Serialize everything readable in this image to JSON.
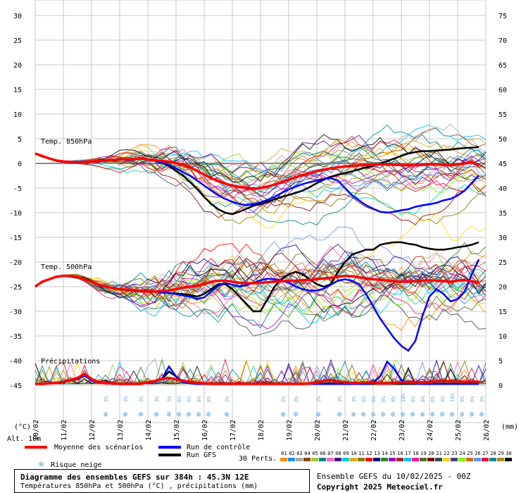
{
  "chart_data": {
    "type": "line",
    "title": "Diagramme des ensembles GEFS sur 384h : 45.3N 12E",
    "subtitle": "Températures 850hPa et 500hPa (°C) , précipitations (mm)",
    "left_axis": {
      "label": "(°C)",
      "ticks": [
        30,
        25,
        20,
        15,
        10,
        5,
        0,
        -5,
        -10,
        -15,
        -20,
        -25,
        -30,
        -35,
        -40,
        -45
      ]
    },
    "right_axis": {
      "label": "(mm)",
      "ticks": [
        75,
        70,
        65,
        60,
        55,
        50,
        45,
        40,
        35,
        30,
        25,
        20,
        15,
        10,
        5,
        0
      ]
    },
    "x_labels": [
      "10/02",
      "11/02",
      "12/02",
      "13/02",
      "14/02",
      "15/02",
      "16/02",
      "17/02",
      "18/02",
      "19/02",
      "20/02",
      "21/02",
      "22/02",
      "23/02",
      "24/02",
      "25/02",
      "26/02"
    ],
    "panel_labels": {
      "t850": "Temp. 850hPa",
      "t500": "Temp. 500hPa",
      "precip": "Précipitations"
    },
    "x_steps": 64,
    "series": [
      {
        "name": "Moyenne des scénarios",
        "color": "#ff0000",
        "t850": [
          2,
          1.5,
          1,
          0.6,
          0.4,
          0.3,
          0.3,
          0.3,
          0.4,
          0.5,
          0.6,
          0.7,
          0.8,
          0.8,
          0.9,
          1,
          0.8,
          0.6,
          0.5,
          0.3,
          0.1,
          -0.3,
          -0.8,
          -1.5,
          -2.3,
          -3,
          -3.6,
          -4.1,
          -4.5,
          -4.8,
          -5,
          -5.1,
          -5,
          -4.7,
          -4.3,
          -3.8,
          -3.3,
          -2.8,
          -2.4,
          -2,
          -1.6,
          -1.3,
          -1,
          -0.8,
          -0.6,
          -0.5,
          -0.4,
          -0.3,
          -0.3,
          -0.2,
          -0.2,
          -0.3,
          -0.3,
          -0.4,
          -0.4,
          -0.3,
          -0.2,
          -0.2,
          -0.3,
          -0.4,
          -0.2,
          0,
          0.3,
          -0.5
        ],
        "t500": [
          -25,
          -24,
          -23.5,
          -23,
          -22.8,
          -22.8,
          -23,
          -23.5,
          -24,
          -24.6,
          -25,
          -25.3,
          -25.5,
          -25.6,
          -25.7,
          -25.9,
          -26,
          -26,
          -25.9,
          -25.8,
          -25.5,
          -25.2,
          -25,
          -24.8,
          -24.5,
          -24,
          -23.8,
          -23.8,
          -24,
          -24.2,
          -24.3,
          -24.3,
          -24.2,
          -24.1,
          -24,
          -23.9,
          -23.8,
          -23.8,
          -23.7,
          -23.6,
          -23.5,
          -23.3,
          -23.2,
          -23,
          -22.8,
          -22.9,
          -23.1,
          -23.3,
          -23.5,
          -23.6,
          -23.8,
          -23.9,
          -24,
          -24,
          -23.9,
          -23.8,
          -23.7,
          -23.8,
          -23.9,
          -24,
          -23.8,
          -23.7,
          -23.9,
          -24.2
        ],
        "precip": [
          0,
          0,
          0.1,
          0.2,
          0.4,
          0.8,
          1.2,
          2,
          1,
          0.3,
          0.1,
          0.1,
          0,
          0,
          0,
          0,
          0.3,
          0.6,
          1,
          1.2,
          0.9,
          0.6,
          0.4,
          0.2,
          0.1,
          0,
          0,
          0,
          0,
          0,
          0,
          0,
          0,
          0,
          0,
          0,
          0,
          0,
          0,
          0.1,
          0.3,
          0.6,
          0.8,
          0.5,
          0.3,
          0.2,
          0.2,
          0.3,
          0.2,
          0.1,
          0.1,
          0.2,
          0.3,
          0.4,
          0.3,
          0.3,
          0.4,
          0.5,
          0.6,
          0.5,
          0.5,
          0.4,
          0.5,
          0.4
        ]
      },
      {
        "name": "Run de contrôle",
        "color": "#0000ff",
        "t850": [
          2,
          1.4,
          1,
          0.5,
          0.3,
          0.2,
          0.2,
          0.3,
          0.4,
          0.5,
          0.6,
          0.7,
          0.8,
          0.9,
          0.9,
          1,
          0.8,
          0.5,
          0.2,
          -0.3,
          -1,
          -1.8,
          -2.5,
          -3.5,
          -4.5,
          -5.5,
          -6.5,
          -7.2,
          -7.8,
          -8.2,
          -8.5,
          -8.3,
          -7.9,
          -7.4,
          -6.8,
          -6,
          -5.3,
          -4.7,
          -4.2,
          -3.8,
          -3.5,
          -3.2,
          -3,
          -3.5,
          -5,
          -6.5,
          -7.5,
          -8.5,
          -9.2,
          -9.8,
          -10,
          -9.8,
          -9.5,
          -9.3,
          -8.8,
          -8.5,
          -8.3,
          -8,
          -7.5,
          -7.2,
          -6.5,
          -5.5,
          -4,
          -2.5
        ],
        "t500": [
          -25,
          -24,
          -23.5,
          -23,
          -22.8,
          -22.8,
          -23,
          -23.5,
          -24,
          -24.6,
          -25,
          -25.3,
          -25.5,
          -25.6,
          -25.7,
          -25.9,
          -26,
          -26,
          -26.2,
          -26.3,
          -26.5,
          -26.8,
          -27,
          -27.5,
          -27.2,
          -26,
          -24.8,
          -24.3,
          -24.6,
          -25,
          -24.7,
          -24.2,
          -23.7,
          -23.4,
          -23.5,
          -23.7,
          -24.2,
          -25,
          -25.5,
          -25.8,
          -25.8,
          -25.4,
          -24.6,
          -23.8,
          -23.5,
          -23.8,
          -24.5,
          -26.5,
          -29,
          -31.5,
          -33.5,
          -35.5,
          -37,
          -38,
          -36,
          -31,
          -27,
          -25.5,
          -26.5,
          -28,
          -27.5,
          -26,
          -22.5,
          -19.5
        ],
        "precip": [
          0,
          0,
          0.1,
          0.2,
          0.4,
          0.7,
          1,
          1.6,
          0.8,
          0.2,
          0.1,
          0,
          0,
          0,
          0,
          0,
          0.2,
          0.5,
          1,
          3.5,
          1.5,
          0.3,
          0.1,
          0,
          0,
          0,
          0,
          0,
          0,
          0,
          0,
          0,
          0,
          0,
          0,
          0,
          0,
          0,
          0,
          0,
          0,
          0,
          0,
          0,
          0,
          0,
          0,
          0,
          0.3,
          1.5,
          4.5,
          3,
          0.8,
          0.2,
          0.1,
          0,
          0,
          0,
          0,
          0,
          0,
          0,
          0,
          0
        ]
      },
      {
        "name": "Run GFS",
        "color": "#000000",
        "t850": [
          2,
          1.4,
          1,
          0.5,
          0.3,
          0.2,
          0.2,
          0.3,
          0.4,
          0.5,
          0.6,
          0.7,
          0.8,
          0.9,
          0.9,
          1,
          0.8,
          0.5,
          0.1,
          -0.5,
          -1.5,
          -2.5,
          -3.8,
          -5.2,
          -6.8,
          -8.2,
          -9.3,
          -10,
          -10.3,
          -9.8,
          -9.2,
          -8.6,
          -8.2,
          -7.8,
          -7.3,
          -6.8,
          -6.4,
          -6,
          -5.5,
          -4.8,
          -4,
          -3.3,
          -2.7,
          -2.3,
          -2,
          -1.6,
          -1.2,
          -0.8,
          -0.5,
          0,
          0.5,
          1,
          1.5,
          2,
          2.3,
          2.5,
          2.5,
          2.6,
          2.7,
          2.8,
          3,
          3.1,
          3.2,
          3.3
        ],
        "t500": [
          -25,
          -24,
          -23.5,
          -23,
          -22.8,
          -22.8,
          -23,
          -23.5,
          -24,
          -24.6,
          -25,
          -25.3,
          -25.5,
          -25.6,
          -25.7,
          -25.9,
          -26,
          -26,
          -26.2,
          -26.3,
          -26.4,
          -26.5,
          -26.7,
          -27,
          -26.5,
          -25.5,
          -24.5,
          -24.5,
          -25.5,
          -27,
          -28.5,
          -30,
          -30,
          -27.5,
          -25,
          -23.5,
          -22.5,
          -22,
          -22.5,
          -23.5,
          -24.5,
          -25,
          -24.5,
          -22,
          -20,
          -18.5,
          -18,
          -17.5,
          -17.5,
          -16.5,
          -16.2,
          -16,
          -16,
          -16.3,
          -16.5,
          -17,
          -17.3,
          -17.5,
          -17.5,
          -17.3,
          -17,
          -16.8,
          -16.5,
          -16
        ],
        "precip": [
          0,
          0,
          0.1,
          0.2,
          0.4,
          0.7,
          1,
          1.8,
          0.9,
          0.2,
          0.1,
          0,
          0,
          0,
          0,
          0,
          0.3,
          0.6,
          1,
          2.5,
          1.5,
          0.5,
          0.1,
          0,
          0,
          0,
          0,
          0,
          0,
          0,
          0,
          0,
          0,
          0,
          0,
          0,
          0,
          0,
          0,
          0,
          0,
          0,
          0,
          0,
          0,
          0,
          0,
          0,
          0,
          0,
          0,
          0,
          0,
          0,
          0,
          0,
          0,
          0,
          0,
          0,
          0,
          0,
          0,
          0
        ]
      }
    ],
    "perturbations_count": 30,
    "snow_risk_slots": [
      [
        50,
        "3%"
      ],
      [
        64,
        "3%"
      ],
      [
        75,
        "3%"
      ],
      [
        86,
        "3%"
      ],
      [
        95,
        "3%"
      ],
      [
        102,
        "6%"
      ],
      [
        109,
        "6%"
      ],
      [
        116,
        "6%"
      ],
      [
        123,
        "6%"
      ],
      [
        136,
        "3%"
      ],
      [
        176,
        "3%"
      ],
      [
        185,
        "3%"
      ],
      [
        201,
        "3%"
      ],
      [
        216,
        "3%"
      ],
      [
        226,
        "3%"
      ],
      [
        233,
        "6%"
      ],
      [
        240,
        "6%"
      ],
      [
        247,
        "6%"
      ],
      [
        254,
        "6%"
      ],
      [
        261,
        "10%"
      ],
      [
        268,
        "6%"
      ],
      [
        275,
        "6%"
      ],
      [
        282,
        "6%"
      ],
      [
        289,
        "6%"
      ],
      [
        296,
        "10%"
      ],
      [
        303,
        "6%"
      ],
      [
        310,
        "6%"
      ],
      [
        317,
        "3%"
      ]
    ]
  },
  "header_labels": {
    "unit_left": "(°C)",
    "unit_right": "(mm)",
    "alt": "Alt. 10m"
  },
  "legend": {
    "mean": "Moyenne des scénarios",
    "control": "Run de contrôle",
    "gfs": "Run GFS",
    "snow": "Risque neige",
    "perts_label": "30 Perts.",
    "perts_numbers": [
      "01",
      "02",
      "03",
      "04",
      "05",
      "06",
      "07",
      "08",
      "09",
      "10",
      "11",
      "12",
      "13",
      "14",
      "15",
      "16",
      "17",
      "18",
      "19",
      "20",
      "21",
      "22",
      "23",
      "24",
      "25",
      "26",
      "27",
      "28",
      "29",
      "30"
    ],
    "perts_colors": [
      "#ff8c00",
      "#1e90ff",
      "#a9a9a9",
      "#8b4513",
      "#9acd32",
      "#008080",
      "#ff69b4",
      "#4b0082",
      "#00ced1",
      "#daa520",
      "#808000",
      "#ff0000",
      "#000080",
      "#228b22",
      "#9400d3",
      "#b22222",
      "#00bfff",
      "#ff1493",
      "#556b2f",
      "#800000",
      "#2f4f4f",
      "#ffd700",
      "#483d8b",
      "#7fff00",
      "#d2691e",
      "#6495ed",
      "#dc143c",
      "#008b8b",
      "#b8860b",
      "#000000"
    ]
  },
  "footer": {
    "title": "Diagramme des ensembles GEFS sur 384h : 45.3N 12E",
    "subtitle": "Températures 850hPa et 500hPa (°C) , précipitations (mm)",
    "run": "Ensemble GEFS du 10/02/2025 - 00Z",
    "copyright": "Copyright 2025 Meteociel.fr"
  }
}
